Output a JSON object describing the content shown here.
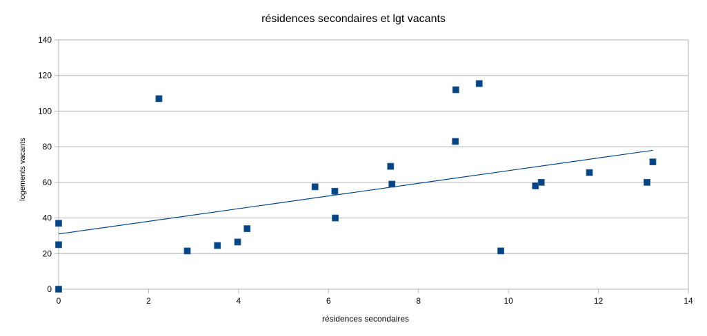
{
  "colors": {
    "marker": "#004586",
    "trendline": "#004586",
    "grid": "#b3b3b3",
    "axis": "#b3b3b3"
  },
  "chart_data": {
    "type": "scatter",
    "title": "résidences secondaires et lgt vacants",
    "xlabel": "résidences secondaires",
    "ylabel": "logements vacants",
    "xlim": [
      0,
      14
    ],
    "ylim": [
      0,
      140
    ],
    "xticks": [
      "0",
      "2",
      "4",
      "6",
      "8",
      "10",
      "12",
      "14"
    ],
    "yticks": [
      "0",
      "20",
      "40",
      "60",
      "80",
      "100",
      "120",
      "140"
    ],
    "grid": true,
    "marker": "square",
    "points": [
      [
        0,
        0
      ],
      [
        0,
        25
      ],
      [
        0,
        37
      ],
      [
        2.23,
        107
      ],
      [
        2.86,
        21.5
      ],
      [
        3.53,
        24.5
      ],
      [
        3.98,
        26.5
      ],
      [
        4.19,
        34
      ],
      [
        5.7,
        57.5
      ],
      [
        6.14,
        55
      ],
      [
        6.15,
        40
      ],
      [
        7.38,
        69
      ],
      [
        7.41,
        59
      ],
      [
        8.82,
        83
      ],
      [
        8.83,
        112
      ],
      [
        9.35,
        115.5
      ],
      [
        9.83,
        21.5
      ],
      [
        10.6,
        58
      ],
      [
        10.73,
        60
      ],
      [
        11.8,
        65.5
      ],
      [
        13.08,
        60
      ],
      [
        13.21,
        71.5
      ]
    ],
    "trendline": {
      "x": [
        0,
        13.21
      ],
      "y": [
        31,
        78
      ]
    }
  }
}
